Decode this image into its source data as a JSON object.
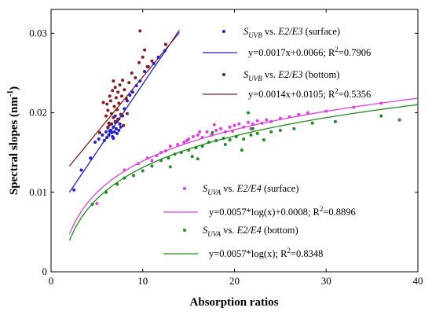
{
  "chart_data": {
    "type": "scatter",
    "xlabel": "Absorption ratios",
    "ylabel": "Spectral slopes (nm",
    "ylabel_sup": "-1",
    "ylabel_close": ")",
    "xlim": [
      0,
      40
    ],
    "ylim": [
      0,
      0.033
    ],
    "xticks": [
      "0",
      "10",
      "20",
      "30",
      "40"
    ],
    "yticks": [
      "0",
      "0.01",
      "0.02",
      "0.03"
    ],
    "grid": false,
    "legend_position": "inside-right",
    "series": [
      {
        "label_sym": "S",
        "label_sub": "UVB",
        "label_vs": " vs. ",
        "label_ratio": "E2/E3",
        "label_loc": " (surface)",
        "color": "#1f1fd6",
        "marker": "dot",
        "fit_label": "y=0.0017x+0.0066; R",
        "fit_label_sup": "2",
        "fit_label_end": "=0.7906",
        "fit": {
          "kind": "linear",
          "a": 0.0017,
          "b": 0.0066,
          "x": [
            2,
            14
          ]
        },
        "points": [
          [
            2.5,
            0.0103
          ],
          [
            3.3,
            0.0128
          ],
          [
            4.3,
            0.0143
          ],
          [
            4.8,
            0.0163
          ],
          [
            5.2,
            0.0167
          ],
          [
            5.6,
            0.0172
          ],
          [
            5.8,
            0.0165
          ],
          [
            6.0,
            0.0176
          ],
          [
            6.1,
            0.0169
          ],
          [
            6.2,
            0.0181
          ],
          [
            6.3,
            0.0172
          ],
          [
            6.4,
            0.0185
          ],
          [
            6.5,
            0.0178
          ],
          [
            6.6,
            0.0175
          ],
          [
            6.7,
            0.017
          ],
          [
            6.8,
            0.0182
          ],
          [
            6.9,
            0.0176
          ],
          [
            7.0,
            0.0188
          ],
          [
            7.1,
            0.018
          ],
          [
            7.2,
            0.0174
          ],
          [
            7.3,
            0.0192
          ],
          [
            7.4,
            0.0178
          ],
          [
            7.5,
            0.0186
          ],
          [
            7.6,
            0.0182
          ],
          [
            7.8,
            0.0196
          ],
          [
            8.0,
            0.0205
          ],
          [
            8.3,
            0.0215
          ],
          [
            8.6,
            0.0222
          ],
          [
            8.9,
            0.0226
          ],
          [
            9.3,
            0.0234
          ],
          [
            9.7,
            0.024
          ],
          [
            10.2,
            0.0252
          ],
          [
            10.6,
            0.0258
          ],
          [
            11.2,
            0.0262
          ],
          [
            11.7,
            0.027
          ],
          [
            12.4,
            0.0278
          ],
          [
            7.0,
            0.0196
          ],
          [
            6.8,
            0.0168
          ],
          [
            7.2,
            0.0189
          ],
          [
            6.4,
            0.0177
          ]
        ]
      },
      {
        "label_sym": "S",
        "label_sub": "UVB",
        "label_vs": " vs. ",
        "label_ratio": "E2/E3",
        "label_loc": " (bottom)",
        "color": "#8b1a1a",
        "marker": "dot",
        "fit_label": "y=0.0014x+0.0105; R",
        "fit_label_sup": "2",
        "fit_label_end": "=0.5356",
        "fit": {
          "kind": "linear",
          "a": 0.0014,
          "b": 0.0105,
          "x": [
            2,
            14
          ]
        },
        "points": [
          [
            5.3,
            0.0175
          ],
          [
            5.7,
            0.0213
          ],
          [
            6.0,
            0.0196
          ],
          [
            6.1,
            0.0211
          ],
          [
            6.2,
            0.0203
          ],
          [
            6.3,
            0.0187
          ],
          [
            6.4,
            0.0221
          ],
          [
            6.5,
            0.0215
          ],
          [
            6.6,
            0.0199
          ],
          [
            6.7,
            0.0228
          ],
          [
            6.8,
            0.0194
          ],
          [
            6.9,
            0.0208
          ],
          [
            7.0,
            0.0232
          ],
          [
            7.1,
            0.0219
          ],
          [
            7.2,
            0.0204
          ],
          [
            7.3,
            0.0226
          ],
          [
            7.4,
            0.0212
          ],
          [
            7.5,
            0.0235
          ],
          [
            7.6,
            0.0198
          ],
          [
            7.7,
            0.0221
          ],
          [
            7.8,
            0.0241
          ],
          [
            8.0,
            0.0229
          ],
          [
            8.2,
            0.0218
          ],
          [
            8.5,
            0.0238
          ],
          [
            8.8,
            0.025
          ],
          [
            9.2,
            0.0244
          ],
          [
            9.6,
            0.0263
          ],
          [
            10.0,
            0.027
          ],
          [
            10.5,
            0.0258
          ],
          [
            11.0,
            0.0265
          ],
          [
            12.5,
            0.0286
          ],
          [
            9.7,
            0.0303
          ],
          [
            10.2,
            0.0279
          ],
          [
            6.2,
            0.0182
          ],
          [
            6.6,
            0.0186
          ],
          [
            7.0,
            0.0189
          ],
          [
            7.4,
            0.0192
          ],
          [
            7.9,
            0.0184
          ],
          [
            8.3,
            0.0199
          ],
          [
            6.8,
            0.024
          ]
        ]
      },
      {
        "label_sym": "S",
        "label_sub": "UVA",
        "label_vs": " vs. ",
        "label_ratio": "E2/E4",
        "label_loc": " (surface)",
        "color": "#e040e0",
        "marker": "dot",
        "fit_label": "y=0.0057*log(x)+0.0008; R",
        "fit_label_sup": "2",
        "fit_label_end": "=0.8896",
        "fit": {
          "kind": "log",
          "a": 0.0057,
          "b": 0.0008,
          "x": [
            2,
            40
          ]
        },
        "points": [
          [
            5.0,
            0.0086
          ],
          [
            8.0,
            0.0128
          ],
          [
            9.5,
            0.0136
          ],
          [
            10.5,
            0.0143
          ],
          [
            11.5,
            0.0146
          ],
          [
            12.5,
            0.0152
          ],
          [
            13.0,
            0.0158
          ],
          [
            13.8,
            0.016
          ],
          [
            14.5,
            0.0163
          ],
          [
            15.0,
            0.0167
          ],
          [
            15.5,
            0.017
          ],
          [
            16.0,
            0.0172
          ],
          [
            16.5,
            0.0169
          ],
          [
            17.0,
            0.0176
          ],
          [
            17.5,
            0.0172
          ],
          [
            18.0,
            0.0178
          ],
          [
            18.5,
            0.018
          ],
          [
            19.0,
            0.0176
          ],
          [
            19.5,
            0.0182
          ],
          [
            20.0,
            0.0184
          ],
          [
            20.5,
            0.0186
          ],
          [
            21.0,
            0.0182
          ],
          [
            21.5,
            0.0188
          ],
          [
            22.0,
            0.0186
          ],
          [
            22.5,
            0.019
          ],
          [
            23.0,
            0.0187
          ],
          [
            23.5,
            0.0191
          ],
          [
            24.0,
            0.0189
          ],
          [
            25.0,
            0.0193
          ],
          [
            26.0,
            0.0195
          ],
          [
            27.0,
            0.0198
          ],
          [
            28.0,
            0.02
          ],
          [
            30.0,
            0.0202
          ],
          [
            33.0,
            0.0207
          ],
          [
            36.0,
            0.0212
          ],
          [
            17.8,
            0.0185
          ],
          [
            19.8,
            0.0177
          ],
          [
            21.8,
            0.018
          ],
          [
            16.2,
            0.0176
          ],
          [
            14.8,
            0.0165
          ],
          [
            12.0,
            0.015
          ],
          [
            11.0,
            0.014
          ]
        ]
      },
      {
        "label_sym": "S",
        "label_sub": "UVA",
        "label_vs": " vs. ",
        "label_ratio": "E2/E4",
        "label_loc": " (bottom)",
        "color": "#1e8c1e",
        "marker": "dot",
        "fit_label": "y=0.0057*log(x); R",
        "fit_label_sup": "2",
        "fit_label_end": "=0.8348",
        "fit": {
          "kind": "log",
          "a": 0.0057,
          "b": 0.0,
          "x": [
            2,
            40
          ]
        },
        "points": [
          [
            4.5,
            0.0085
          ],
          [
            6.0,
            0.01
          ],
          [
            7.2,
            0.011
          ],
          [
            8.0,
            0.0118
          ],
          [
            9.0,
            0.0121
          ],
          [
            10.0,
            0.0127
          ],
          [
            11.0,
            0.0133
          ],
          [
            12.0,
            0.014
          ],
          [
            12.8,
            0.0143
          ],
          [
            13.5,
            0.0148
          ],
          [
            14.2,
            0.015
          ],
          [
            15.0,
            0.0153
          ],
          [
            15.8,
            0.0156
          ],
          [
            16.5,
            0.0158
          ],
          [
            17.2,
            0.0163
          ],
          [
            18.0,
            0.0165
          ],
          [
            18.8,
            0.0168
          ],
          [
            19.5,
            0.0166
          ],
          [
            20.2,
            0.017
          ],
          [
            21.0,
            0.0167
          ],
          [
            21.8,
            0.0172
          ],
          [
            22.5,
            0.0174
          ],
          [
            23.2,
            0.0166
          ],
          [
            24.0,
            0.0176
          ],
          [
            25.0,
            0.0178
          ],
          [
            26.5,
            0.018
          ],
          [
            28.5,
            0.0187
          ],
          [
            31.0,
            0.0189
          ],
          [
            36.0,
            0.0196
          ],
          [
            38.0,
            0.0191
          ],
          [
            16.0,
            0.0142
          ],
          [
            19.0,
            0.016
          ],
          [
            20.8,
            0.0153
          ],
          [
            17.6,
            0.0175
          ],
          [
            22.0,
            0.018
          ],
          [
            21.5,
            0.02
          ],
          [
            13.0,
            0.0132
          ],
          [
            15.4,
            0.0145
          ]
        ]
      }
    ]
  }
}
